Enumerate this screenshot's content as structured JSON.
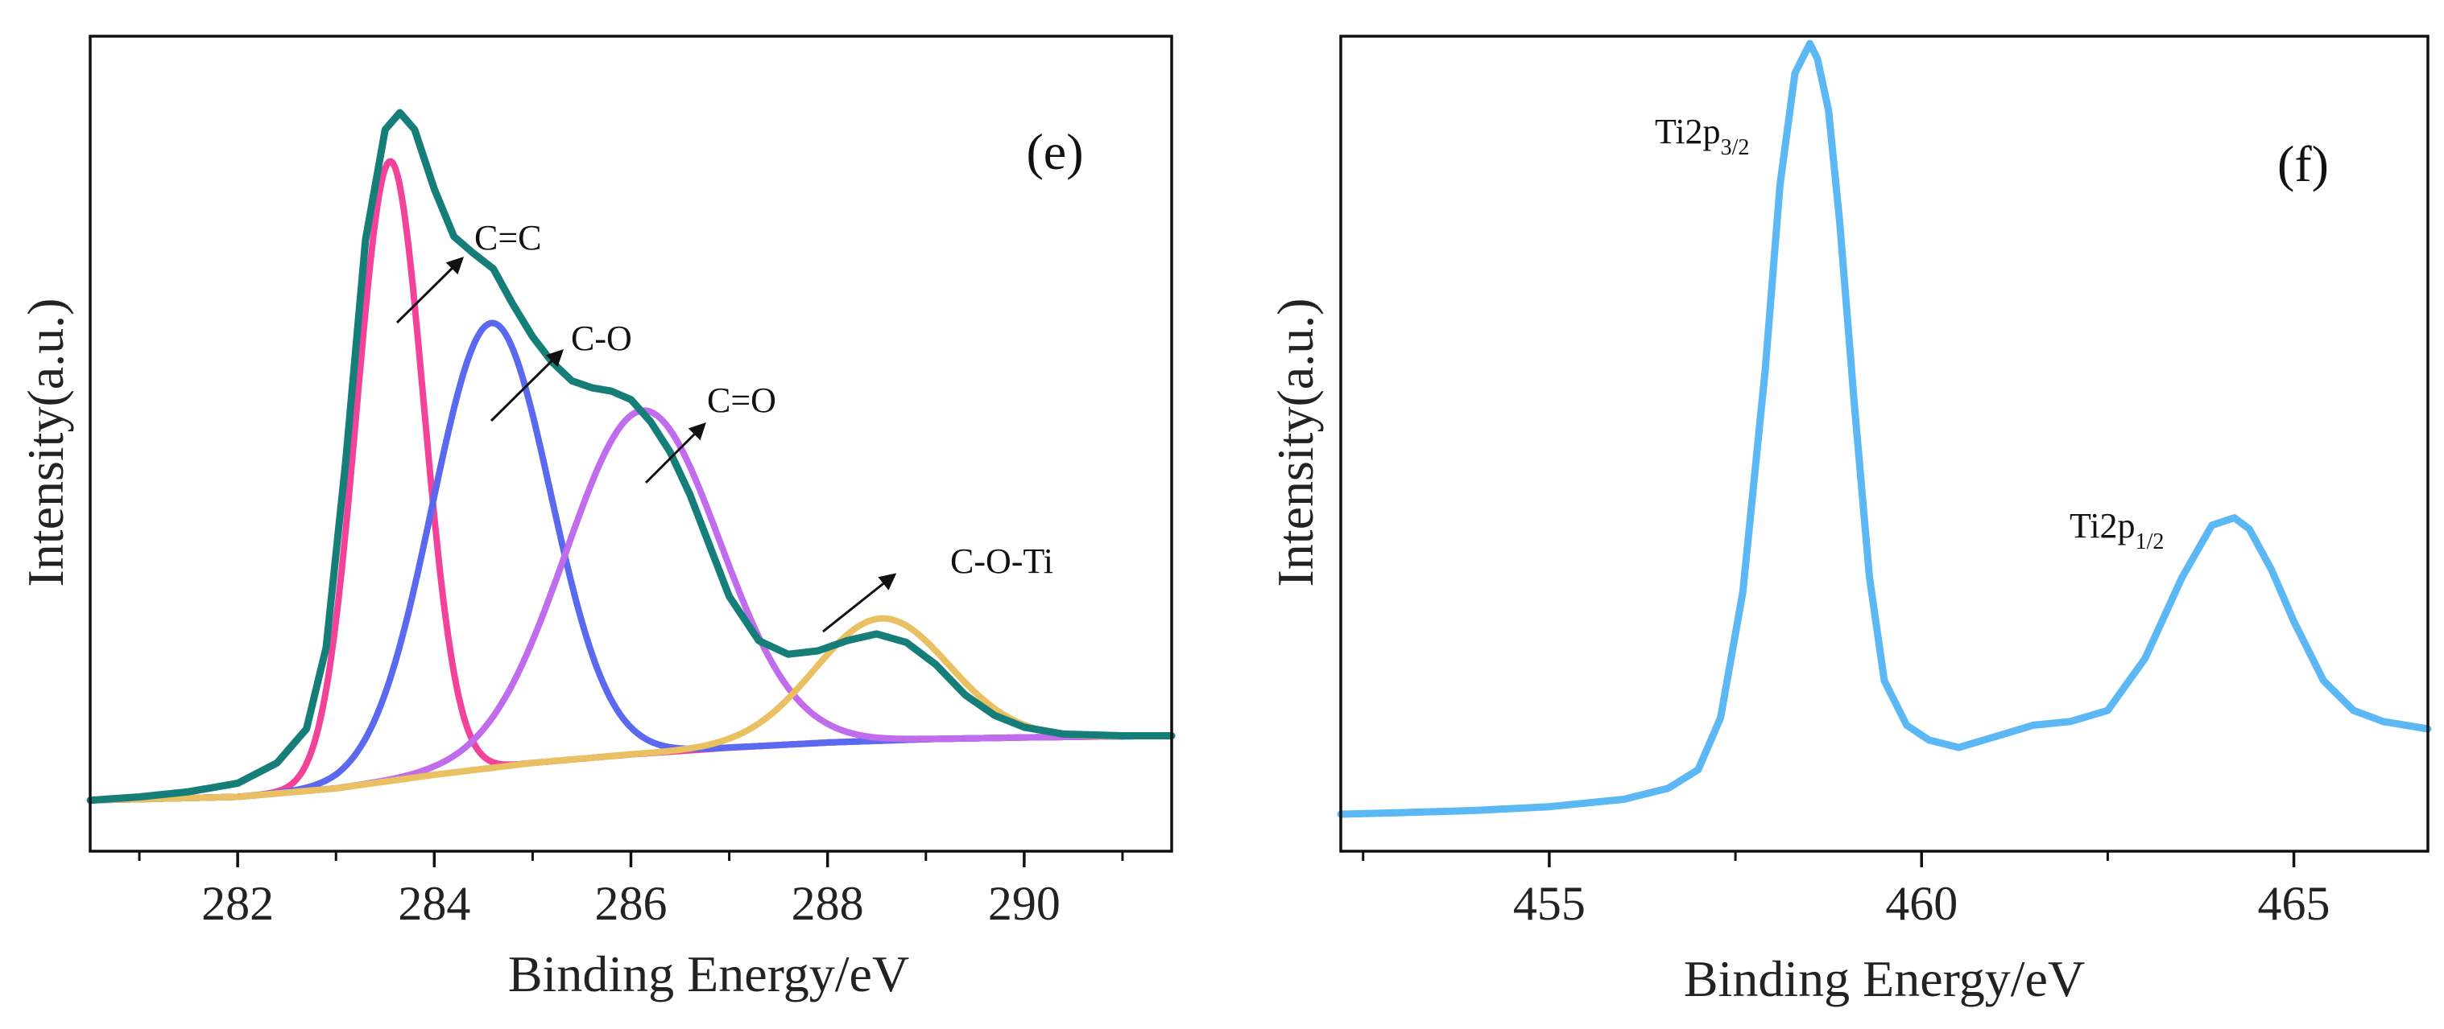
{
  "chart_data": [
    {
      "type": "line",
      "panel_label": "(e)",
      "xlabel": "Binding Energy/eV",
      "ylabel": "Intensity(a.u.)",
      "xlim": [
        280.5,
        291.5
      ],
      "ylim": [
        -0.3,
        4.5
      ],
      "xticks": [
        282,
        284,
        286,
        288,
        290
      ],
      "xticks_minor": [
        281,
        283,
        285,
        287,
        289,
        291
      ],
      "yticks": [],
      "series": [
        {
          "name": "Envelope",
          "color": "#157e78",
          "x": [
            280.5,
            281.0,
            281.5,
            282.0,
            282.4,
            282.7,
            282.9,
            283.1,
            283.3,
            283.5,
            283.65,
            283.8,
            284.0,
            284.2,
            284.4,
            284.6,
            284.8,
            285.0,
            285.2,
            285.4,
            285.6,
            285.8,
            286.0,
            286.2,
            286.4,
            286.6,
            286.8,
            287.0,
            287.3,
            287.6,
            287.9,
            288.2,
            288.5,
            288.8,
            289.1,
            289.4,
            289.7,
            290.0,
            290.4,
            291.0,
            291.5
          ],
          "y": [
            0.0,
            0.02,
            0.05,
            0.1,
            0.22,
            0.42,
            0.9,
            2.0,
            3.3,
            3.95,
            4.05,
            3.95,
            3.6,
            3.32,
            3.22,
            3.13,
            2.92,
            2.73,
            2.58,
            2.47,
            2.43,
            2.41,
            2.36,
            2.23,
            2.05,
            1.8,
            1.5,
            1.2,
            0.94,
            0.86,
            0.88,
            0.94,
            0.98,
            0.93,
            0.8,
            0.62,
            0.5,
            0.43,
            0.39,
            0.38,
            0.38
          ]
        },
        {
          "name": "C=C",
          "color": "#f2429a",
          "center": 283.55,
          "sigma": 0.34,
          "amplitude": 3.65,
          "baseline": "background"
        },
        {
          "name": "C-O",
          "color": "#5b68f0",
          "center": 284.58,
          "sigma": 0.6,
          "amplitude": 2.62,
          "baseline": "background"
        },
        {
          "name": "C=O",
          "color": "#c06cec",
          "center": 286.12,
          "sigma": 0.78,
          "amplitude": 2.02,
          "baseline": "background"
        },
        {
          "name": "C-O-Ti",
          "color": "#e9c062",
          "center": 288.55,
          "sigma": 0.68,
          "amplitude": 0.72,
          "baseline": "background"
        },
        {
          "name": "Background",
          "color": "#e9c062",
          "x": [
            280.5,
            282.0,
            283.0,
            284.0,
            285.0,
            286.0,
            287.0,
            288.0,
            289.0,
            290.0,
            291.5
          ],
          "y": [
            0.0,
            0.02,
            0.07,
            0.15,
            0.22,
            0.27,
            0.31,
            0.34,
            0.36,
            0.37,
            0.38
          ]
        }
      ],
      "annotations": [
        "C=C",
        "C-O",
        "C=O",
        "C-O-Ti"
      ]
    },
    {
      "type": "line",
      "panel_label": "(f)",
      "xlabel": "Binding Energy/eV",
      "ylabel": "Intensity(a.u.)",
      "xlim": [
        452.2,
        466.8
      ],
      "ylim": [
        -0.5,
        10.5
      ],
      "xticks": [
        455,
        460,
        465
      ],
      "xticks_minor": [
        452.5,
        457.5,
        462.5
      ],
      "yticks": [],
      "series": [
        {
          "name": "Ti2p",
          "color": "#5bb8f5",
          "x": [
            452.2,
            453.0,
            454.0,
            455.0,
            456.0,
            456.6,
            457.0,
            457.3,
            457.6,
            457.9,
            458.1,
            458.3,
            458.5,
            458.6,
            458.75,
            458.9,
            459.1,
            459.3,
            459.5,
            459.8,
            460.1,
            460.5,
            461.0,
            461.5,
            462.0,
            462.5,
            463.0,
            463.5,
            463.9,
            464.2,
            464.4,
            464.7,
            465.0,
            465.4,
            465.8,
            466.2,
            466.8
          ],
          "y": [
            0.0,
            0.02,
            0.05,
            0.1,
            0.2,
            0.35,
            0.6,
            1.3,
            3.0,
            6.0,
            8.5,
            10.0,
            10.4,
            10.2,
            9.5,
            8.0,
            5.5,
            3.2,
            1.8,
            1.2,
            1.0,
            0.9,
            1.05,
            1.2,
            1.25,
            1.4,
            2.1,
            3.2,
            3.9,
            4.0,
            3.85,
            3.3,
            2.6,
            1.8,
            1.4,
            1.25,
            1.15
          ]
        }
      ],
      "annotations": [
        {
          "text": "Ti2p",
          "sub": "3/2"
        },
        {
          "text": "Ti2p",
          "sub": "1/2"
        }
      ]
    }
  ]
}
